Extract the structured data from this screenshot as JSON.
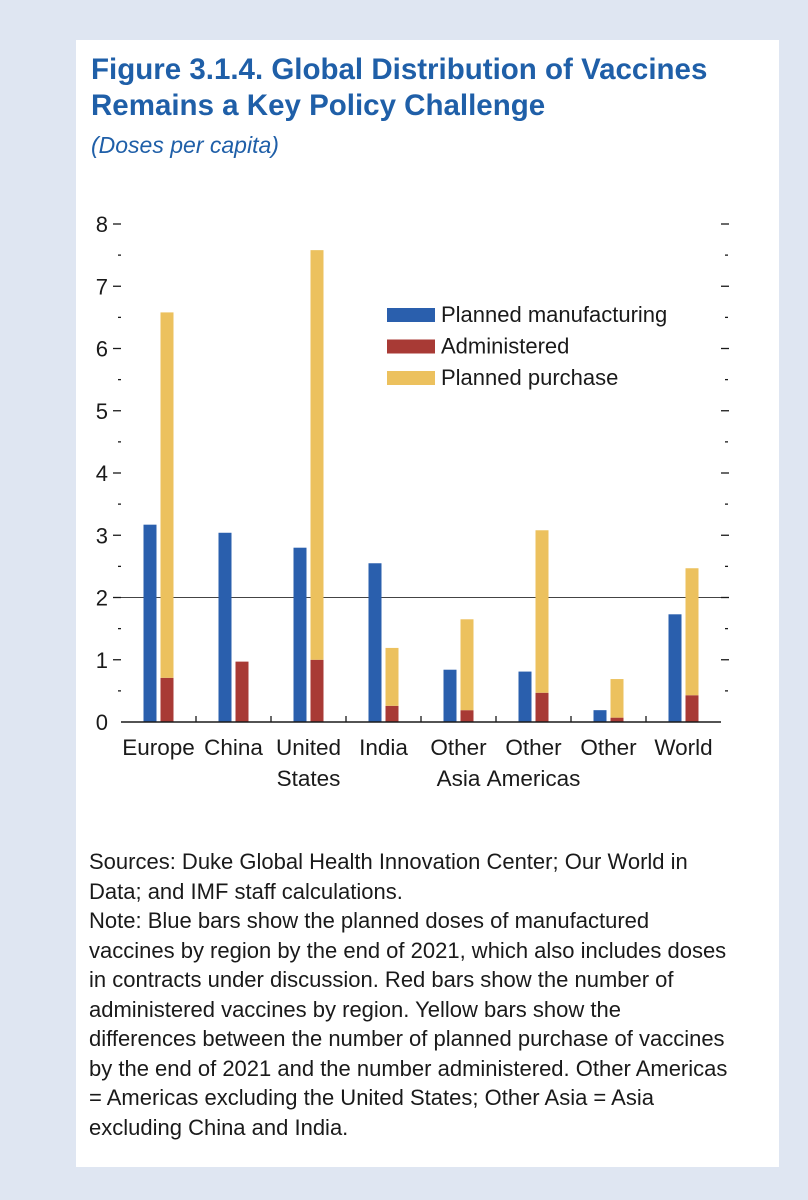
{
  "figure": {
    "title_line1": "Figure 3.1.4.  Global Distribution of Vaccines",
    "title_line2": "Remains a Key Policy Challenge",
    "subtitle": "(Doses per capita)"
  },
  "chart_data": {
    "type": "bar",
    "categories": [
      [
        "Europe"
      ],
      [
        "China"
      ],
      [
        "United",
        "States"
      ],
      [
        "India"
      ],
      [
        "Other",
        "Asia"
      ],
      [
        "Other",
        "Americas"
      ],
      [
        "Other"
      ],
      [
        "World"
      ]
    ],
    "series": [
      {
        "name": "Planned manufacturing",
        "color": "#2a5fad",
        "values": [
          3.17,
          3.04,
          2.8,
          2.55,
          0.84,
          0.81,
          0.19,
          1.73
        ]
      },
      {
        "name": "Administered",
        "color": "#a83a35",
        "values": [
          0.71,
          0.97,
          1.0,
          0.26,
          0.19,
          0.47,
          0.07,
          0.43
        ]
      },
      {
        "name": "Planned purchase",
        "color": "#ecc15e",
        "values": [
          5.87,
          0,
          6.58,
          0.93,
          1.46,
          2.61,
          0.62,
          2.04
        ],
        "stacked_on": "Administered"
      }
    ],
    "ylim": [
      0,
      8
    ],
    "yticks": [
      0,
      1,
      2,
      3,
      4,
      5,
      6,
      7,
      8
    ],
    "reference_line": 2,
    "legend_position": "top-right"
  },
  "notes": {
    "sources": "Sources: Duke Global Health Innovation Center; Our World in Data; and IMF staff calculations.",
    "note": "Note: Blue bars show the planned doses of manufactured vaccines by region by the end of 2021, which also includes doses in contracts under discussion. Red bars show the number of administered vaccines by region. Yellow bars show the differences between the number of planned purchase of vaccines by the end of 2021 and the number administered. Other Americas = Americas excluding the United States; Other Asia = Asia excluding China and India."
  }
}
